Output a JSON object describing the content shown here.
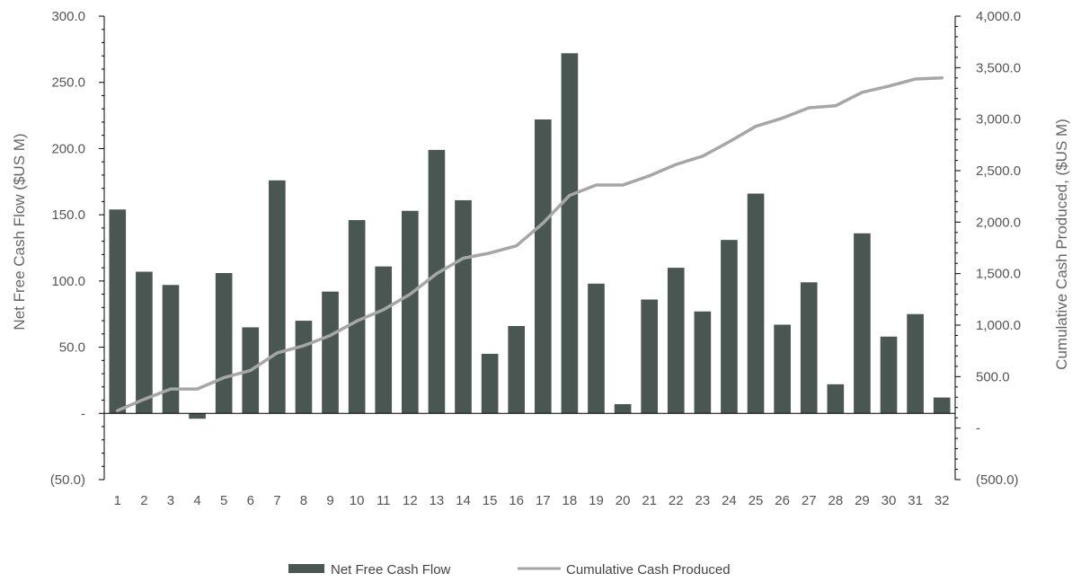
{
  "chart_data": {
    "type": "bar",
    "categories": [
      "1",
      "2",
      "3",
      "4",
      "5",
      "6",
      "7",
      "8",
      "9",
      "10",
      "11",
      "12",
      "13",
      "14",
      "15",
      "16",
      "17",
      "18",
      "19",
      "20",
      "21",
      "22",
      "23",
      "24",
      "25",
      "26",
      "27",
      "28",
      "29",
      "30",
      "31",
      "32"
    ],
    "series": [
      {
        "name": "Net Free Cash Flow",
        "type": "bar",
        "axis": "left",
        "values": [
          154,
          107,
          97,
          -4,
          106,
          65,
          176,
          70,
          92,
          146,
          111,
          153,
          199,
          161,
          45,
          66,
          222,
          272,
          98,
          7,
          86,
          110,
          77,
          131,
          166,
          67,
          99,
          22,
          136,
          58,
          75,
          12
        ]
      },
      {
        "name": "Cumulative Cash Produced",
        "type": "line",
        "axis": "right",
        "values": [
          170,
          280,
          380,
          380,
          490,
          560,
          730,
          800,
          900,
          1040,
          1150,
          1300,
          1500,
          1650,
          1700,
          1770,
          1990,
          2260,
          2360,
          2360,
          2450,
          2560,
          2640,
          2780,
          2930,
          3010,
          3110,
          3130,
          3260,
          3320,
          3390,
          3400
        ]
      }
    ],
    "ylabel": "Net Free Cash Flow ($US M)",
    "y2label": "Cumulative Cash Produced, ($US M)",
    "ylim": [
      -50,
      300
    ],
    "y2lim": [
      -500,
      4000
    ],
    "yticks": [
      {
        "value": 300,
        "label": "300.0"
      },
      {
        "value": 250,
        "label": "250.0"
      },
      {
        "value": 200,
        "label": "200.0"
      },
      {
        "value": 150,
        "label": "150.0"
      },
      {
        "value": 100,
        "label": "100.0"
      },
      {
        "value": 50,
        "label": "50.0"
      },
      {
        "value": 0,
        "label": "-"
      },
      {
        "value": -50,
        "label": "(50.0)"
      }
    ],
    "y2ticks": [
      {
        "value": 4000,
        "label": "4,000.0"
      },
      {
        "value": 3500,
        "label": "3,500.0"
      },
      {
        "value": 3000,
        "label": "3,000.0"
      },
      {
        "value": 2500,
        "label": "2,500.0"
      },
      {
        "value": 2000,
        "label": "2,000.0"
      },
      {
        "value": 1500,
        "label": "1,500.0"
      },
      {
        "value": 1000,
        "label": "1,000.0"
      },
      {
        "value": 500,
        "label": "500.0"
      },
      {
        "value": 0,
        "label": "-"
      },
      {
        "value": -500,
        "label": "(500.0)"
      }
    ],
    "grid": false,
    "legend_position": "bottom",
    "colors": {
      "bar": "#4a5651",
      "line": "#a6a6a6",
      "axis": "#000000",
      "text": "#555555"
    }
  }
}
